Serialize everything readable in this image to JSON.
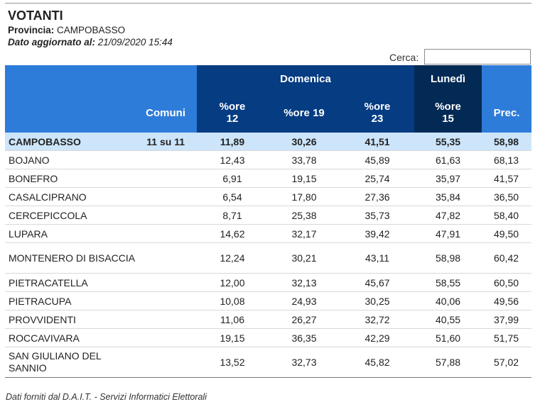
{
  "header": {
    "title": "VOTANTI",
    "provincia_label": "Provincia:",
    "provincia_value": "CAMPOBASSO",
    "updated_label": "Dato aggiornato al:",
    "updated_value": "21/09/2020 15:44"
  },
  "search": {
    "label": "Cerca:",
    "value": ""
  },
  "table": {
    "group_headers": {
      "domenica": "Domenica",
      "lunedi": "Lunedì"
    },
    "columns": {
      "comuni": "Comuni",
      "ore12_a": "%ore",
      "ore12_b": "12",
      "ore19": "%ore 19",
      "ore23_a": "%ore",
      "ore23_b": "23",
      "ore15_a": "%ore",
      "ore15_b": "15",
      "prec": "Prec."
    },
    "total": {
      "name": "CAMPOBASSO",
      "comuni": "11 su 11",
      "ore12": "11,89",
      "ore19": "30,26",
      "ore23": "41,51",
      "ore15": "55,35",
      "prec": "58,98"
    },
    "rows": [
      {
        "name": "BOJANO",
        "ore12": "12,43",
        "ore19": "33,78",
        "ore23": "45,89",
        "ore15": "61,63",
        "prec": "68,13"
      },
      {
        "name": "BONEFRO",
        "ore12": "6,91",
        "ore19": "19,15",
        "ore23": "25,74",
        "ore15": "35,97",
        "prec": "41,57"
      },
      {
        "name": "CASALCIPRANO",
        "ore12": "6,54",
        "ore19": "17,80",
        "ore23": "27,36",
        "ore15": "35,84",
        "prec": "36,50"
      },
      {
        "name": "CERCEPICCOLA",
        "ore12": "8,71",
        "ore19": "25,38",
        "ore23": "35,73",
        "ore15": "47,82",
        "prec": "58,40"
      },
      {
        "name": "LUPARA",
        "ore12": "14,62",
        "ore19": "32,17",
        "ore23": "39,42",
        "ore15": "47,91",
        "prec": "49,50"
      },
      {
        "name": "MONTENERO DI BISACCIA",
        "ore12": "12,24",
        "ore19": "30,21",
        "ore23": "43,11",
        "ore15": "58,98",
        "prec": "60,42"
      },
      {
        "name": "PIETRACATELLA",
        "ore12": "12,00",
        "ore19": "32,13",
        "ore23": "45,67",
        "ore15": "58,55",
        "prec": "60,50"
      },
      {
        "name": "PIETRACUPA",
        "ore12": "10,08",
        "ore19": "24,93",
        "ore23": "30,25",
        "ore15": "40,06",
        "prec": "49,56"
      },
      {
        "name": "PROVVIDENTI",
        "ore12": "11,06",
        "ore19": "26,27",
        "ore23": "32,72",
        "ore15": "40,55",
        "prec": "37,99"
      },
      {
        "name": "ROCCAVIVARA",
        "ore12": "19,15",
        "ore19": "36,35",
        "ore23": "42,29",
        "ore15": "51,60",
        "prec": "51,75"
      },
      {
        "name": "SAN GIULIANO DEL SANNIO",
        "ore12": "13,52",
        "ore19": "32,73",
        "ore23": "45,82",
        "ore15": "57,88",
        "prec": "57,02"
      }
    ]
  },
  "footer": {
    "text": "Dati forniti dal D.A.I.T. - Servizi Informatici Elettorali"
  },
  "colors": {
    "header_light": "#2e7cd9",
    "header_mid": "#053c82",
    "header_dark": "#032a55",
    "total_row": "#cde5fb"
  }
}
